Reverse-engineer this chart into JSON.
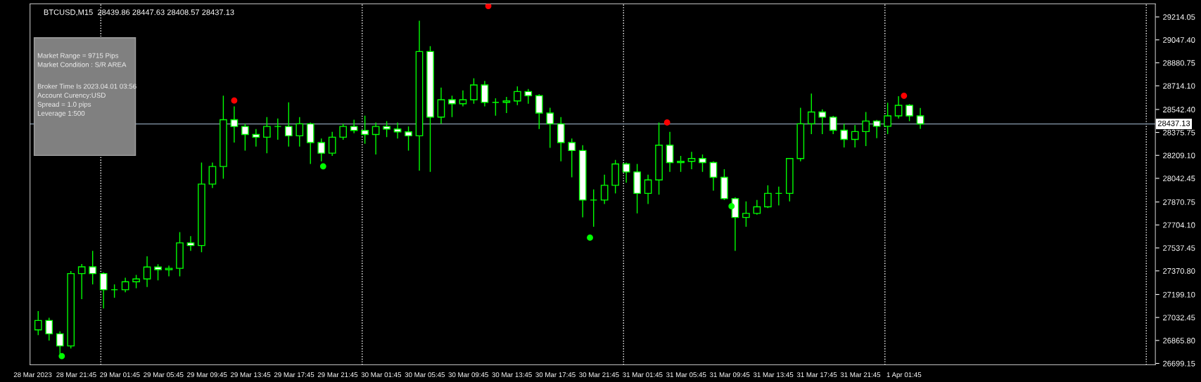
{
  "chart_data": {
    "type": "candlestick",
    "title": "BTCUSD,M15  28439.86 28447.63 28408.57 28437.13",
    "color": "#00ff00",
    "x": [
      "2023-03-28T18:15",
      "2023-03-28T19:15",
      "2023-03-28T20:15",
      "2023-03-28T21:15",
      "2023-03-28T22:15",
      "2023-03-28T23:15",
      "2023-03-29T00:15",
      "2023-03-29T01:15",
      "2023-03-29T02:15",
      "2023-03-29T03:15",
      "2023-03-29T04:15",
      "2023-03-29T05:15",
      "2023-03-29T06:15",
      "2023-03-29T07:15",
      "2023-03-29T08:15",
      "2023-03-29T09:15",
      "2023-03-29T10:15",
      "2023-03-29T11:15",
      "2023-03-29T12:15",
      "2023-03-29T13:15",
      "2023-03-29T14:15",
      "2023-03-29T15:15",
      "2023-03-29T16:15",
      "2023-03-29T17:15",
      "2023-03-29T18:15",
      "2023-03-29T19:15",
      "2023-03-29T20:15",
      "2023-03-29T21:15",
      "2023-03-29T22:15",
      "2023-03-29T23:15",
      "2023-03-30T00:15",
      "2023-03-30T01:15",
      "2023-03-30T02:15",
      "2023-03-30T03:15",
      "2023-03-30T04:15",
      "2023-03-30T05:15",
      "2023-03-30T06:15",
      "2023-03-30T07:15",
      "2023-03-30T08:15",
      "2023-03-30T09:15",
      "2023-03-30T10:15",
      "2023-03-30T11:15",
      "2023-03-30T12:15",
      "2023-03-30T13:15",
      "2023-03-30T14:15",
      "2023-03-30T15:15",
      "2023-03-30T16:15",
      "2023-03-30T17:15",
      "2023-03-30T18:15",
      "2023-03-30T19:15",
      "2023-03-30T20:15",
      "2023-03-30T21:15",
      "2023-03-30T22:15",
      "2023-03-30T23:15",
      "2023-03-31T00:15",
      "2023-03-31T01:15",
      "2023-03-31T02:15",
      "2023-03-31T03:15",
      "2023-03-31T04:15",
      "2023-03-31T05:15",
      "2023-03-31T06:15",
      "2023-03-31T07:15",
      "2023-03-31T08:15",
      "2023-03-31T09:15",
      "2023-03-31T10:15",
      "2023-03-31T11:15",
      "2023-03-31T12:15",
      "2023-03-31T13:15",
      "2023-03-31T14:15",
      "2023-03-31T15:15",
      "2023-03-31T16:15",
      "2023-03-31T17:15",
      "2023-03-31T18:15",
      "2023-03-31T19:15",
      "2023-03-31T20:15",
      "2023-03-31T21:15",
      "2023-03-31T22:15",
      "2023-03-31T23:15",
      "2023-04-01T00:15",
      "2023-04-01T01:15",
      "2023-04-01T02:15",
      "2023-04-01T03:15"
    ],
    "ohlc": [
      [
        26943,
        27079,
        26904,
        27011
      ],
      [
        27011,
        27030,
        26865,
        26914
      ],
      [
        26914,
        26933,
        26768,
        26826
      ],
      [
        26826,
        27370,
        26807,
        27351
      ],
      [
        27351,
        27420,
        27166,
        27400
      ],
      [
        27400,
        27516,
        27273,
        27351
      ],
      [
        27351,
        27360,
        27098,
        27234
      ],
      [
        27234,
        27273,
        27176,
        27234
      ],
      [
        27234,
        27321,
        27215,
        27292
      ],
      [
        27292,
        27341,
        27244,
        27312
      ],
      [
        27312,
        27477,
        27253,
        27399
      ],
      [
        27399,
        27419,
        27302,
        27380
      ],
      [
        27380,
        27409,
        27331,
        27389
      ],
      [
        27389,
        27652,
        27331,
        27574
      ],
      [
        27574,
        27623,
        27516,
        27555
      ],
      [
        27555,
        28157,
        27506,
        28001
      ],
      [
        28001,
        28157,
        27972,
        28128
      ],
      [
        28128,
        28642,
        28040,
        28468
      ],
      [
        28468,
        28565,
        28302,
        28419
      ],
      [
        28419,
        28438,
        28244,
        28361
      ],
      [
        28361,
        28400,
        28273,
        28341
      ],
      [
        28341,
        28487,
        28225,
        28419
      ],
      [
        28419,
        28477,
        28322,
        28419
      ],
      [
        28419,
        28594,
        28273,
        28351
      ],
      [
        28351,
        28487,
        28273,
        28438
      ],
      [
        28438,
        28448,
        28147,
        28302
      ],
      [
        28302,
        28332,
        28166,
        28225
      ],
      [
        28225,
        28380,
        28205,
        28341
      ],
      [
        28341,
        28438,
        28322,
        28419
      ],
      [
        28419,
        28468,
        28370,
        28390
      ],
      [
        28390,
        28497,
        28293,
        28361
      ],
      [
        28361,
        28448,
        28215,
        28419
      ],
      [
        28419,
        28458,
        28341,
        28400
      ],
      [
        28400,
        28448,
        28332,
        28380
      ],
      [
        28380,
        28419,
        28244,
        28351
      ],
      [
        28351,
        29186,
        28098,
        28963
      ],
      [
        28963,
        29002,
        28089,
        28487
      ],
      [
        28487,
        28701,
        28438,
        28613
      ],
      [
        28613,
        28642,
        28487,
        28584
      ],
      [
        28584,
        28681,
        28565,
        28613
      ],
      [
        28613,
        28769,
        28584,
        28720
      ],
      [
        28720,
        28749,
        28565,
        28594
      ],
      [
        28594,
        28623,
        28497,
        28594
      ],
      [
        28594,
        28633,
        28516,
        28604
      ],
      [
        28604,
        28710,
        28574,
        28672
      ],
      [
        28672,
        28691,
        28584,
        28642
      ],
      [
        28642,
        28652,
        28400,
        28516
      ],
      [
        28516,
        28555,
        28264,
        28438
      ],
      [
        28438,
        28487,
        28166,
        28302
      ],
      [
        28302,
        28332,
        28050,
        28244
      ],
      [
        28244,
        28283,
        27759,
        27885
      ],
      [
        27885,
        27962,
        27691,
        27885
      ],
      [
        27885,
        28069,
        27856,
        27992
      ],
      [
        27992,
        28176,
        27933,
        28147
      ],
      [
        28147,
        28157,
        28011,
        28089
      ],
      [
        28089,
        28147,
        27788,
        27933
      ],
      [
        27933,
        28069,
        27856,
        28031
      ],
      [
        28031,
        28448,
        27924,
        28283
      ],
      [
        28283,
        28380,
        28089,
        28157
      ],
      [
        28157,
        28205,
        28089,
        28166
      ],
      [
        28166,
        28234,
        28108,
        28186
      ],
      [
        28186,
        28215,
        28089,
        28157
      ],
      [
        28157,
        28166,
        27953,
        28050
      ],
      [
        28050,
        28108,
        27885,
        27895
      ],
      [
        27895,
        27904,
        27516,
        27759
      ],
      [
        27759,
        27875,
        27691,
        27788
      ],
      [
        27788,
        27885,
        27778,
        27836
      ],
      [
        27836,
        27992,
        27827,
        27933
      ],
      [
        27933,
        27982,
        27846,
        27933
      ],
      [
        27933,
        28186,
        27875,
        28186
      ],
      [
        28186,
        28555,
        28166,
        28438
      ],
      [
        28439,
        28657,
        28363,
        28524
      ],
      [
        28524,
        28543,
        28363,
        28486
      ],
      [
        28486,
        28496,
        28363,
        28391
      ],
      [
        28391,
        28439,
        28267,
        28325
      ],
      [
        28325,
        28429,
        28267,
        28382
      ],
      [
        28382,
        28524,
        28277,
        28458
      ],
      [
        28458,
        28467,
        28334,
        28420
      ],
      [
        28420,
        28591,
        28363,
        28496
      ],
      [
        28496,
        28638,
        28477,
        28572
      ],
      [
        28572,
        28581,
        28458,
        28496
      ],
      [
        28496,
        28553,
        28401,
        28437
      ]
    ],
    "series": [
      {
        "type": "scatter",
        "color": "#ff0000",
        "marker": "circle",
        "x": [
          "2023-03-29T12:15",
          "2023-03-30T11:35",
          "2023-03-31T04:00",
          "2023-04-01T01:45"
        ],
        "values": [
          28607,
          29293,
          28448,
          28642
        ]
      },
      {
        "type": "scatter",
        "color": "#00ff00",
        "marker": "circle",
        "x": [
          "2023-03-28T20:25",
          "2023-03-29T20:25",
          "2023-03-30T20:55",
          "2023-03-31T09:55"
        ],
        "values": [
          26752,
          28130,
          27612,
          27840
        ]
      }
    ],
    "xlim": [
      "2023-03-28T17:30",
      "2023-04-02T00:50"
    ],
    "xticks": [
      {
        "value": "2023-03-28T17:45",
        "label": "28 Mar 2023"
      },
      {
        "value": "2023-03-28T21:45",
        "label": "28 Mar 21:45"
      },
      {
        "value": "2023-03-29T01:45",
        "label": "29 Mar 01:45"
      },
      {
        "value": "2023-03-29T05:45",
        "label": "29 Mar 05:45"
      },
      {
        "value": "2023-03-29T09:45",
        "label": "29 Mar 09:45"
      },
      {
        "value": "2023-03-29T13:45",
        "label": "29 Mar 13:45"
      },
      {
        "value": "2023-03-29T17:45",
        "label": "29 Mar 17:45"
      },
      {
        "value": "2023-03-29T21:45",
        "label": "29 Mar 21:45"
      },
      {
        "value": "2023-03-30T01:45",
        "label": "30 Mar 01:45"
      },
      {
        "value": "2023-03-30T05:45",
        "label": "30 Mar 05:45"
      },
      {
        "value": "2023-03-30T09:45",
        "label": "30 Mar 09:45"
      },
      {
        "value": "2023-03-30T13:45",
        "label": "30 Mar 13:45"
      },
      {
        "value": "2023-03-30T17:45",
        "label": "30 Mar 17:45"
      },
      {
        "value": "2023-03-30T21:45",
        "label": "30 Mar 21:45"
      },
      {
        "value": "2023-03-31T01:45",
        "label": "31 Mar 01:45"
      },
      {
        "value": "2023-03-31T05:45",
        "label": "31 Mar 05:45"
      },
      {
        "value": "2023-03-31T09:45",
        "label": "31 Mar 09:45"
      },
      {
        "value": "2023-03-31T13:45",
        "label": "31 Mar 13:45"
      },
      {
        "value": "2023-03-31T17:45",
        "label": "31 Mar 17:45"
      },
      {
        "value": "2023-03-31T21:45",
        "label": "31 Mar 21:45"
      },
      {
        "value": "2023-04-01T01:45",
        "label": "1 Apr 01:45"
      }
    ],
    "ylim": [
      26689,
      29309
    ],
    "yticks": [
      {
        "value": 29214.05,
        "label": "29214.05"
      },
      {
        "value": 29047.4,
        "label": "29047.40"
      },
      {
        "value": 28880.75,
        "label": "28880.75"
      },
      {
        "value": 28714.1,
        "label": "28714.10"
      },
      {
        "value": 28542.4,
        "label": "28542.40"
      },
      {
        "value": 28375.75,
        "label": "28375.75"
      },
      {
        "value": 28209.1,
        "label": "28209.10"
      },
      {
        "value": 28042.45,
        "label": "28042.45"
      },
      {
        "value": 27870.75,
        "label": "27870.75"
      },
      {
        "value": 27704.1,
        "label": "27704.10"
      },
      {
        "value": 27537.45,
        "label": "27537.45"
      },
      {
        "value": 27370.8,
        "label": "27370.80"
      },
      {
        "value": 27199.1,
        "label": "27199.10"
      },
      {
        "value": 27032.45,
        "label": "27032.45"
      },
      {
        "value": 26865.8,
        "label": "26865.80"
      },
      {
        "value": 26699.15,
        "label": "26699.15"
      }
    ],
    "ref_lines": [
      {
        "axis": "y",
        "value": 28437.13,
        "label": "28437.13",
        "color": "#778899",
        "line_style": "solid"
      },
      {
        "axis": "x",
        "value": "2023-03-29T00:00",
        "color": "#ffffff",
        "line_style": "dotted"
      },
      {
        "axis": "x",
        "value": "2023-03-30T00:00",
        "color": "#ffffff",
        "line_style": "dotted"
      },
      {
        "axis": "x",
        "value": "2023-03-31T00:00",
        "color": "#ffffff",
        "line_style": "dotted"
      },
      {
        "axis": "x",
        "value": "2023-04-01T00:00",
        "color": "#ffffff",
        "line_style": "dotted"
      },
      {
        "axis": "x",
        "value": "2023-04-02T00:00",
        "color": "#ffffff",
        "line_style": "dotted"
      }
    ],
    "annotations": [
      "Market Range = 9715 Pips",
      "Market Condition : S/R AREA",
      "Broker Time Is 2023.04.01 03:56",
      "Account Curency:USD",
      "Spread = 1.0 pips",
      "Leverage 1:500"
    ],
    "grid": false,
    "legend": false
  }
}
